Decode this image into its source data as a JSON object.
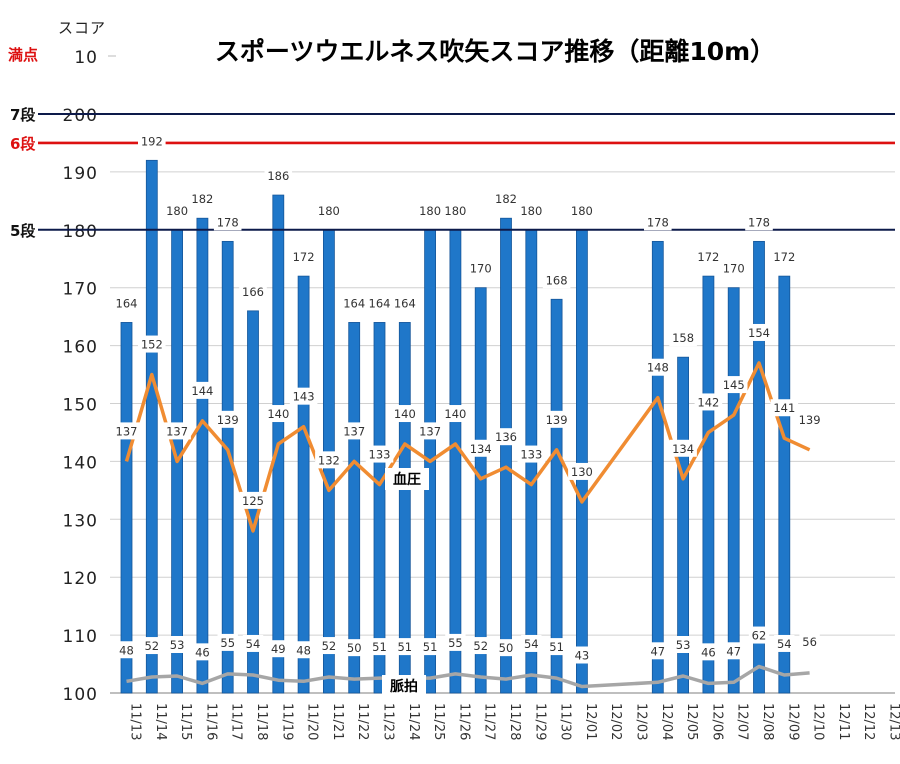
{
  "chart_data": {
    "type": "bar",
    "title": "スポーツウエルネス吹矢スコア推移（距離10m）",
    "y_axis_caption": "スコア",
    "ylim": [
      100,
      210
    ],
    "yticks": [
      100,
      110,
      120,
      130,
      140,
      150,
      160,
      170,
      180,
      190,
      200
    ],
    "top_tick": {
      "label": "10",
      "caption": "満点"
    },
    "categories": [
      "11/13",
      "11/14",
      "11/15",
      "11/16",
      "11/17",
      "11/18",
      "11/19",
      "11/20",
      "11/21",
      "11/22",
      "11/23",
      "11/24",
      "11/25",
      "11/26",
      "11/27",
      "11/28",
      "11/29",
      "11/30",
      "12/01",
      "12/02",
      "12/03",
      "12/04",
      "12/05",
      "12/06",
      "12/07",
      "12/08",
      "12/09",
      "12/10",
      "12/11",
      "12/12",
      "12/13"
    ],
    "series": [
      {
        "values": [
          164,
          192,
          180,
          182,
          178,
          166,
          186,
          172,
          180,
          164,
          164,
          164,
          180,
          180,
          170,
          182,
          180,
          168,
          180,
          null,
          null,
          178,
          158,
          172,
          170,
          178,
          172,
          null,
          null,
          null,
          null
        ],
        "color": "#1f77c9"
      },
      {
        "name": "血圧",
        "values": [
          137,
          152,
          137,
          144,
          139,
          125,
          140,
          143,
          132,
          137,
          133,
          140,
          137,
          140,
          134,
          136,
          133,
          139,
          130,
          null,
          null,
          148,
          134,
          142,
          145,
          154,
          141,
          139,
          null,
          null,
          null
        ],
        "color": "#f08c32"
      },
      {
        "name": "脈拍",
        "values": [
          48,
          52,
          53,
          46,
          55,
          54,
          49,
          48,
          52,
          50,
          51,
          51,
          51,
          55,
          52,
          50,
          54,
          51,
          43,
          null,
          null,
          47,
          53,
          46,
          47,
          62,
          54,
          56,
          null,
          null,
          null
        ],
        "color": "#a6a6a6"
      }
    ],
    "reference_lines": [
      {
        "label": "7段",
        "value": 200,
        "color": "#0d1a4a"
      },
      {
        "label": "6段",
        "value": 195,
        "color": "#dd1111"
      },
      {
        "label": "5段",
        "value": 180,
        "color": "#0d1a4a"
      }
    ],
    "grid": true
  }
}
